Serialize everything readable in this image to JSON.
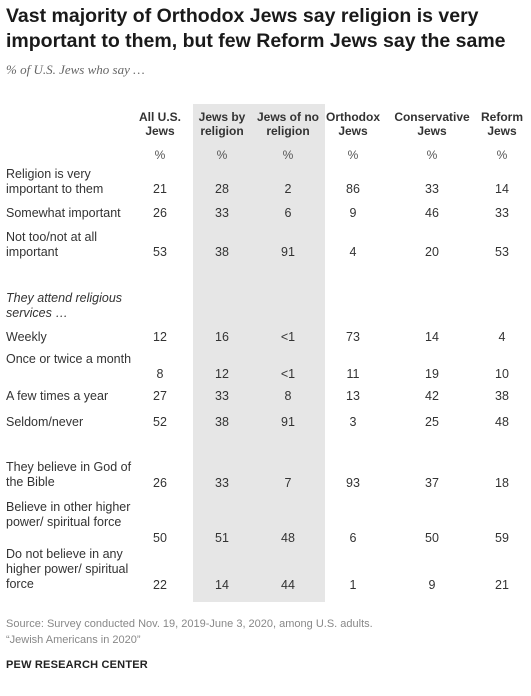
{
  "title": "Vast majority of Orthodox Jews say religion is very important to them, but few Reform Jews say the same",
  "subtitle": "% of U.S. Jews who say …",
  "chart_data": {
    "type": "table",
    "columns": [
      "All U.S. Jews",
      "Jews by religion",
      "Jews of no religion",
      "Orthodox Jews",
      "Conservative Jews",
      "Reform Jews"
    ],
    "unit_row": [
      "%",
      "%",
      "%",
      "%",
      "%",
      "%"
    ],
    "rows": [
      {
        "label": "Religion is very important to them",
        "values": [
          "21",
          "28",
          "2",
          "86",
          "33",
          "14"
        ]
      },
      {
        "label": "Somewhat important",
        "values": [
          "26",
          "33",
          "6",
          "9",
          "46",
          "33"
        ]
      },
      {
        "label": "Not too/not at all important",
        "values": [
          "53",
          "38",
          "91",
          "4",
          "20",
          "53"
        ]
      },
      {
        "label": "They attend religious services …",
        "section": true,
        "values": []
      },
      {
        "label": "Weekly",
        "values": [
          "12",
          "16",
          "<1",
          "73",
          "14",
          "4"
        ]
      },
      {
        "label": "Once or twice a month",
        "values": [
          "8",
          "12",
          "<1",
          "11",
          "19",
          "10"
        ]
      },
      {
        "label": "A few times a year",
        "values": [
          "27",
          "33",
          "8",
          "13",
          "42",
          "38"
        ]
      },
      {
        "label": "Seldom/never",
        "values": [
          "52",
          "38",
          "91",
          "3",
          "25",
          "48"
        ]
      },
      {
        "label": "They believe in God of the Bible",
        "values": [
          "26",
          "33",
          "7",
          "93",
          "37",
          "18"
        ]
      },
      {
        "label": "Believe in other higher power/ spiritual force",
        "values": [
          "50",
          "51",
          "48",
          "6",
          "50",
          "59"
        ]
      },
      {
        "label": "Do not believe in any higher power/ spiritual force",
        "values": [
          "22",
          "14",
          "44",
          "1",
          "9",
          "21"
        ]
      }
    ],
    "highlighted_columns": [
      "Jews by religion",
      "Jews of no religion"
    ],
    "highlight_color": "#e6e6e6"
  },
  "source": "Source: Survey conducted Nov. 19, 2019-June 3, 2020, among U.S. adults.",
  "report": "“Jewish Americans in 2020”",
  "brand": "PEW RESEARCH CENTER"
}
